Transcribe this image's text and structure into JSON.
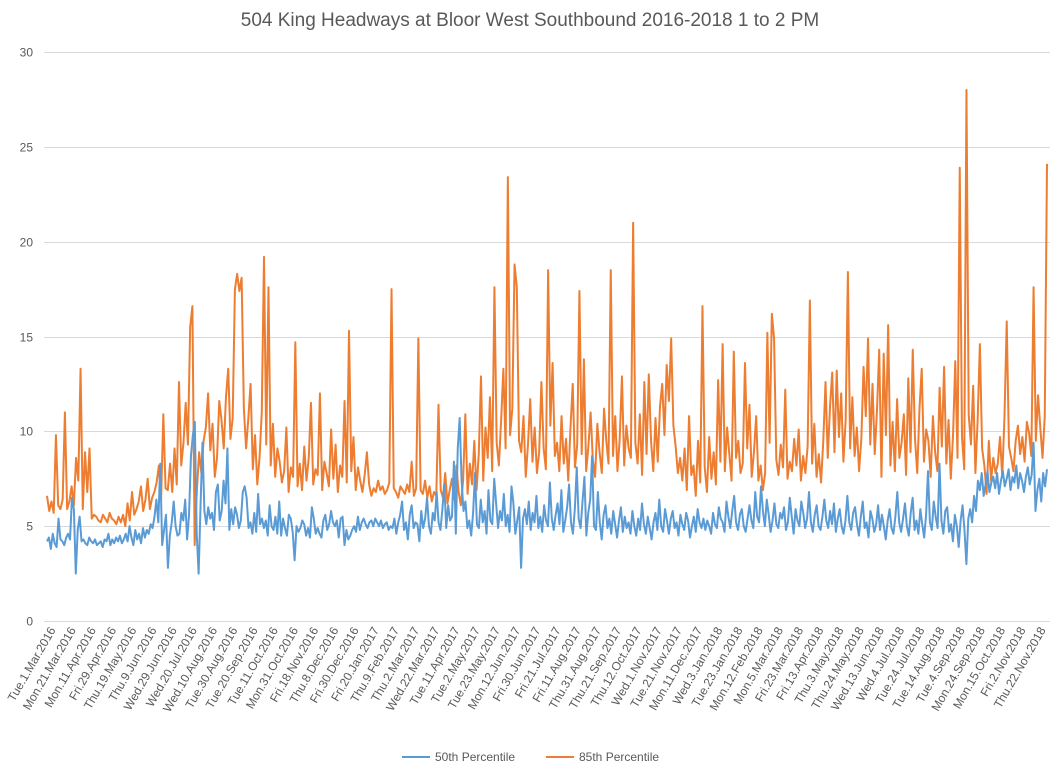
{
  "chart_data": {
    "type": "line",
    "title": "504 King Headways at Bloor West Southbound 2016-2018 1 to 2 PM",
    "xlabel": "",
    "ylabel": "",
    "ylim": [
      0,
      30
    ],
    "yticks": [
      0,
      5,
      10,
      15,
      20,
      25,
      30
    ],
    "grid": true,
    "legend_position": "bottom",
    "x_start": "2016-03-01",
    "x_end": "2018-11-30",
    "x_tick_labels": [
      "Tue.1.Mar.2016",
      "Mon.21.Mar.2016",
      "Mon.11.Apr.2016",
      "Fri.29.Apr.2016",
      "Thu.19.May.2016",
      "Thu.9.Jun.2016",
      "Wed.29.Jun.2016",
      "Wed.20.Jul.2016",
      "Wed.10.Aug.2016",
      "Tue.30.Aug.2016",
      "Tue.20.Sep.2016",
      "Tue.11.Oct.2016",
      "Mon.31.Oct.2016",
      "Fri.18.Nov.2016",
      "Thu.8.Dec.2016",
      "Fri.30.Dec.2016",
      "Fri.20.Jan.2017",
      "Thu.9.Feb.2017",
      "Thu.2.Mar.2017",
      "Wed.22.Mar.2017",
      "Tue.11.Apr.2017",
      "Tue.2.May.2017",
      "Tue.23.May.2017",
      "Mon.12.Jun.2017",
      "Fri.30.Jun.2017",
      "Fri.21.Jul.2017",
      "Fri.11.Aug.2017",
      "Thu.31.Aug.2017",
      "Thu.21.Sep.2017",
      "Thu.12.Oct.2017",
      "Wed.1.Nov.2017",
      "Tue.21.Nov.2017",
      "Mon.11.Dec.2017",
      "Wed.3.Jan.2018",
      "Tue.23.Jan.2018",
      "Mon.12.Feb.2018",
      "Mon.5.Mar.2018",
      "Fri.23.Mar.2018",
      "Fri.13.Apr.2018",
      "Thu.3.May.2018",
      "Thu.24.May.2018",
      "Wed.13.Jun.2018",
      "Wed.4.Jul.2018",
      "Tue.24.Jul.2018",
      "Tue.14.Aug.2018",
      "Tue.4.Sep.2018",
      "Mon.24.Sep.2018",
      "Mon.15.Oct.2018",
      "Fri.2.Nov.2018",
      "Thu.22.Nov.2018"
    ],
    "series": [
      {
        "name": "50th Percentile",
        "color": "#5b9bd5",
        "values": [
          4.2,
          4.4,
          3.8,
          4.6,
          4.1,
          3.9,
          5.4,
          4.3,
          4.2,
          4.0,
          4.4,
          4.6,
          4.3,
          6.5,
          5.9,
          2.5,
          4.8,
          5.5,
          4.2,
          4.3,
          4.1,
          4.0,
          4.4,
          4.2,
          4.1,
          4.3,
          4.0,
          4.1,
          4.2,
          3.9,
          4.3,
          4.2,
          4.6,
          4.0,
          4.3,
          4.1,
          4.4,
          4.2,
          4.5,
          4.1,
          4.3,
          4.6,
          4.2,
          5.0,
          4.4,
          4.0,
          4.8,
          4.3,
          4.6,
          4.1,
          4.9,
          4.4,
          4.8,
          4.6,
          5.1,
          4.9,
          5.5,
          6.4,
          5.2,
          8.3,
          4.0,
          4.8,
          5.6,
          2.8,
          4.5,
          5.2,
          6.3,
          5.0,
          4.5,
          4.6,
          5.7,
          5.3,
          6.4,
          4.3,
          5.6,
          8.7,
          9.8,
          10.5,
          4.6,
          2.5,
          6.1,
          9.4,
          5.8,
          5.1,
          6.0,
          5.4,
          5.7,
          4.8,
          6.8,
          7.2,
          5.3,
          5.8,
          7.4,
          6.2,
          9.1,
          4.8,
          5.9,
          5.1,
          6.0,
          5.6,
          4.9,
          5.3,
          6.8,
          7.1,
          6.5,
          4.9,
          5.2,
          4.6,
          5.7,
          4.7,
          6.7,
          5.1,
          5.4,
          4.9,
          5.3,
          4.5,
          6.1,
          5.0,
          4.8,
          5.5,
          4.6,
          6.3,
          4.5,
          5.4,
          4.9,
          4.5,
          5.6,
          5.4,
          4.7,
          3.2,
          5.0,
          4.7,
          4.9,
          5.3,
          5.1,
          4.5,
          4.9,
          4.4,
          6.0,
          5.4,
          4.6,
          4.9,
          4.6,
          4.4,
          5.3,
          5.6,
          4.8,
          5.1,
          5.8,
          5.2,
          5.0,
          5.3,
          4.4,
          5.4,
          5.5,
          4.0,
          4.8,
          4.3,
          4.5,
          4.8,
          5.0,
          4.7,
          5.5,
          4.8,
          5.2,
          5.4,
          5.1,
          4.9,
          5.2,
          5.3,
          5.0,
          5.4,
          5.2,
          5.0,
          5.3,
          4.9,
          5.1,
          5.2,
          4.8,
          5.0,
          4.9,
          5.4,
          4.6,
          5.2,
          5.6,
          6.3,
          4.8,
          5.2,
          4.3,
          5.6,
          6.1,
          4.9,
          5.2,
          5.1,
          4.2,
          5.8,
          4.9,
          5.4,
          6.5,
          5.0,
          4.6,
          5.7,
          5.3,
          6.8,
          5.2,
          4.8,
          5.9,
          7.2,
          4.9,
          6.1,
          5.3,
          5.5,
          8.4,
          4.6,
          9.1,
          10.7,
          7.4,
          5.8,
          6.3,
          4.9,
          5.3,
          4.5,
          5.7,
          7.8,
          5.1,
          4.9,
          6.4,
          5.2,
          5.8,
          4.6,
          6.9,
          5.3,
          5.1,
          7.5,
          6.2,
          4.9,
          5.8,
          5.3,
          6.7,
          5.0,
          5.6,
          4.7,
          7.1,
          6.2,
          4.6,
          5.3,
          6.0,
          2.8,
          5.4,
          5.9,
          5.1,
          6.3,
          4.8,
          5.7,
          5.2,
          6.6,
          4.9,
          5.5,
          4.7,
          6.1,
          5.3,
          5.0,
          7.3,
          5.4,
          4.8,
          5.6,
          6.2,
          5.1,
          6.9,
          4.7,
          5.3,
          6.0,
          7.2,
          5.2,
          4.6,
          5.9,
          8.1,
          5.4,
          4.9,
          6.3,
          7.6,
          4.5,
          5.7,
          6.4,
          8.7,
          5.0,
          4.8,
          6.8,
          5.2,
          4.3,
          5.6,
          6.1,
          4.9,
          5.4,
          4.6,
          5.8,
          5.1,
          4.4,
          5.3,
          6.0,
          4.7,
          5.5,
          4.9,
          5.2,
          4.6,
          5.8,
          5.0,
          4.5,
          5.4,
          4.8,
          6.2,
          5.1,
          4.6,
          5.5,
          4.9,
          4.3,
          5.2,
          5.7,
          4.8,
          6.4,
          5.0,
          4.7,
          5.9,
          5.3,
          4.6,
          5.4,
          5.8,
          4.9,
          5.2,
          4.5,
          5.6,
          5.1,
          4.8,
          5.7,
          5.3,
          4.4,
          5.0,
          5.5,
          4.7,
          5.9,
          5.2,
          4.9,
          5.4,
          4.8,
          5.3,
          5.0,
          4.6,
          5.7,
          5.1,
          4.9,
          6.0,
          5.4,
          5.2,
          4.7,
          6.3,
          5.5,
          4.9,
          5.8,
          6.6,
          5.2,
          4.8,
          5.6,
          5.9,
          5.0,
          4.7,
          5.4,
          6.1,
          5.3,
          4.9,
          6.8,
          5.5,
          5.2,
          7.1,
          5.8,
          5.0,
          6.4,
          5.6,
          4.7,
          5.3,
          6.2,
          5.1,
          4.9,
          5.7,
          5.4,
          6.0,
          4.8,
          5.2,
          6.5,
          5.5,
          4.6,
          5.9,
          5.3,
          5.0,
          6.3,
          5.7,
          4.9,
          5.4,
          6.8,
          5.2,
          4.7,
          5.6,
          6.1,
          5.0,
          4.8,
          5.5,
          6.4,
          5.3,
          4.9,
          5.8,
          5.1,
          6.2,
          4.7,
          5.4,
          5.9,
          5.0,
          4.6,
          5.3,
          6.6,
          5.2,
          4.8,
          5.7,
          6.0,
          5.1,
          4.5,
          5.5,
          6.3,
          4.9,
          5.2,
          4.4,
          5.8,
          5.4,
          4.7,
          5.1,
          6.1,
          4.8,
          5.6,
          5.0,
          4.3,
          5.3,
          5.9,
          4.9,
          4.6,
          5.5,
          6.8,
          5.2,
          4.7,
          5.4,
          6.2,
          5.0,
          4.5,
          5.7,
          6.5,
          4.8,
          5.3,
          4.6,
          5.9,
          5.1,
          4.4,
          5.6,
          7.9,
          5.2,
          4.8,
          6.3,
          5.5,
          4.9,
          8.3,
          5.3,
          4.6,
          5.8,
          6.0,
          4.7,
          5.1,
          4.2,
          5.6,
          5.0,
          3.9,
          5.3,
          6.1,
          4.8,
          3.0,
          5.4,
          5.9,
          5.2,
          6.6,
          5.8,
          7.4,
          6.9,
          7.8,
          6.6,
          7.2,
          7.9,
          6.8,
          7.3,
          7.6,
          7.0,
          7.8,
          6.7,
          7.4,
          7.9,
          7.1,
          7.5,
          8.0,
          6.9,
          7.6,
          7.3,
          8.2,
          7.0,
          7.8,
          7.4,
          6.8,
          7.6,
          8.1,
          7.2,
          7.7,
          9.4,
          5.8,
          6.9,
          7.5,
          6.3,
          7.8,
          7.1,
          8.0
        ]
      },
      {
        "name": "85th Percentile",
        "color": "#ed7d31",
        "values": [
          6.6,
          5.8,
          6.3,
          5.7,
          9.8,
          6.1,
          5.9,
          6.4,
          11.0,
          5.9,
          6.3,
          7.1,
          6.1,
          8.6,
          7.4,
          13.3,
          5.9,
          8.9,
          6.8,
          9.1,
          5.4,
          5.6,
          5.5,
          5.3,
          5.2,
          5.6,
          5.4,
          5.2,
          5.7,
          5.4,
          5.3,
          5.1,
          5.5,
          5.2,
          5.6,
          5.0,
          6.2,
          5.3,
          6.8,
          5.6,
          5.9,
          6.3,
          7.1,
          5.8,
          6.4,
          7.5,
          5.9,
          6.5,
          6.8,
          7.3,
          8.2,
          6.4,
          10.9,
          7.0,
          6.9,
          8.3,
          6.8,
          9.1,
          7.2,
          12.6,
          8.2,
          9.4,
          11.5,
          9.3,
          15.5,
          16.6,
          4.0,
          6.9,
          8.9,
          7.8,
          9.5,
          10.2,
          12.0,
          9.0,
          10.4,
          7.6,
          8.6,
          11.6,
          10.6,
          9.1,
          11.8,
          13.3,
          9.6,
          10.7,
          17.5,
          18.3,
          17.4,
          18.1,
          11.2,
          9.1,
          10.7,
          12.5,
          8.0,
          9.8,
          7.2,
          8.6,
          11.0,
          19.2,
          9.3,
          17.6,
          8.2,
          10.4,
          7.6,
          9.1,
          8.4,
          7.3,
          7.9,
          10.2,
          6.8,
          8.1,
          7.6,
          14.7,
          7.1,
          8.3,
          6.9,
          9.2,
          7.4,
          8.6,
          11.5,
          7.2,
          8.0,
          7.7,
          12.0,
          6.9,
          8.4,
          7.8,
          7.1,
          10.1,
          7.5,
          9.3,
          6.8,
          8.2,
          7.6,
          11.6,
          7.3,
          15.3,
          7.9,
          9.7,
          6.9,
          8.1,
          7.4,
          6.8,
          7.7,
          8.9,
          7.2,
          6.6,
          7.0,
          6.8,
          7.4,
          6.9,
          7.1,
          6.7,
          6.9,
          7.3,
          17.5,
          7.0,
          6.8,
          6.5,
          7.1,
          6.9,
          6.7,
          7.2,
          6.8,
          8.4,
          6.6,
          7.0,
          14.9,
          6.9,
          6.7,
          7.4,
          6.5,
          7.1,
          6.3,
          6.8,
          6.6,
          11.4,
          6.9,
          6.5,
          7.8,
          6.2,
          6.9,
          7.5,
          6.4,
          8.2,
          6.8,
          6.1,
          7.4,
          10.9,
          6.7,
          8.3,
          7.2,
          9.5,
          6.9,
          8.8,
          12.9,
          7.4,
          10.2,
          8.6,
          11.8,
          7.9,
          17.6,
          9.4,
          8.2,
          10.6,
          13.3,
          9.1,
          23.4,
          9.8,
          11.2,
          18.8,
          17.6,
          9.5,
          8.9,
          10.8,
          7.6,
          9.3,
          11.7,
          8.4,
          10.2,
          7.8,
          8.9,
          12.6,
          9.1,
          8.0,
          18.5,
          10.3,
          13.6,
          8.7,
          9.4,
          7.9,
          10.8,
          8.3,
          9.6,
          7.4,
          10.2,
          12.5,
          8.1,
          9.3,
          17.4,
          8.8,
          13.8,
          7.9,
          9.2,
          11.0,
          8.5,
          7.6,
          10.4,
          8.9,
          7.8,
          11.2,
          9.5,
          8.3,
          18.5,
          8.7,
          10.8,
          7.9,
          9.6,
          12.9,
          8.2,
          10.3,
          9.1,
          8.6,
          21.0,
          9.4,
          8.3,
          10.9,
          7.7,
          12.6,
          8.8,
          13.0,
          9.5,
          7.9,
          10.7,
          8.4,
          11.3,
          12.5,
          9.8,
          13.5,
          11.6,
          14.9,
          10.3,
          9.2,
          7.8,
          8.6,
          7.4,
          9.1,
          6.9,
          10.8,
          7.7,
          8.2,
          6.6,
          9.5,
          7.3,
          16.6,
          8.1,
          6.8,
          9.7,
          7.5,
          8.9,
          7.2,
          12.7,
          8.4,
          14.6,
          7.9,
          10.2,
          8.8,
          7.4,
          14.2,
          8.6,
          9.5,
          7.8,
          8.3,
          13.6,
          9.1,
          11.4,
          7.6,
          8.9,
          10.8,
          7.4,
          8.2,
          6.9,
          7.8,
          15.2,
          9.4,
          16.2,
          14.9,
          8.5,
          7.7,
          9.3,
          8.1,
          12.2,
          7.5,
          8.4,
          7.9,
          9.6,
          8.2,
          10.1,
          7.4,
          8.7,
          7.8,
          9.2,
          16.9,
          8.3,
          10.4,
          7.6,
          8.8,
          7.3,
          9.5,
          12.6,
          8.6,
          11.3,
          13.1,
          8.9,
          13.2,
          9.7,
          12.0,
          8.4,
          10.6,
          18.4,
          9.1,
          11.8,
          8.7,
          10.2,
          7.9,
          9.6,
          13.4,
          10.8,
          14.9,
          9.3,
          12.5,
          8.8,
          11.1,
          14.3,
          7.6,
          14.1,
          9.8,
          15.6,
          8.2,
          10.5,
          7.9,
          11.7,
          8.6,
          9.4,
          10.9,
          7.7,
          12.8,
          8.9,
          14.3,
          9.6,
          7.8,
          11.2,
          13.3,
          8.4,
          10.1,
          9.5,
          7.6,
          10.8,
          8.9,
          7.9,
          12.3,
          9.2,
          13.4,
          8.3,
          10.6,
          7.5,
          9.8,
          13.7,
          8.6,
          23.9,
          9.7,
          8.0,
          28.0,
          10.9,
          9.3,
          12.4,
          7.8,
          10.6,
          14.6,
          9.1,
          8.2,
          6.7,
          9.5,
          7.4,
          8.6,
          7.8,
          8.3,
          9.7,
          7.6,
          10.8,
          15.8,
          9.2,
          8.6,
          7.9,
          9.5,
          10.3,
          8.8,
          9.7,
          8.4,
          10.5,
          9.9,
          8.7,
          17.6,
          9.5,
          11.9,
          10.2,
          8.6,
          10.8,
          24.1
        ]
      }
    ]
  }
}
